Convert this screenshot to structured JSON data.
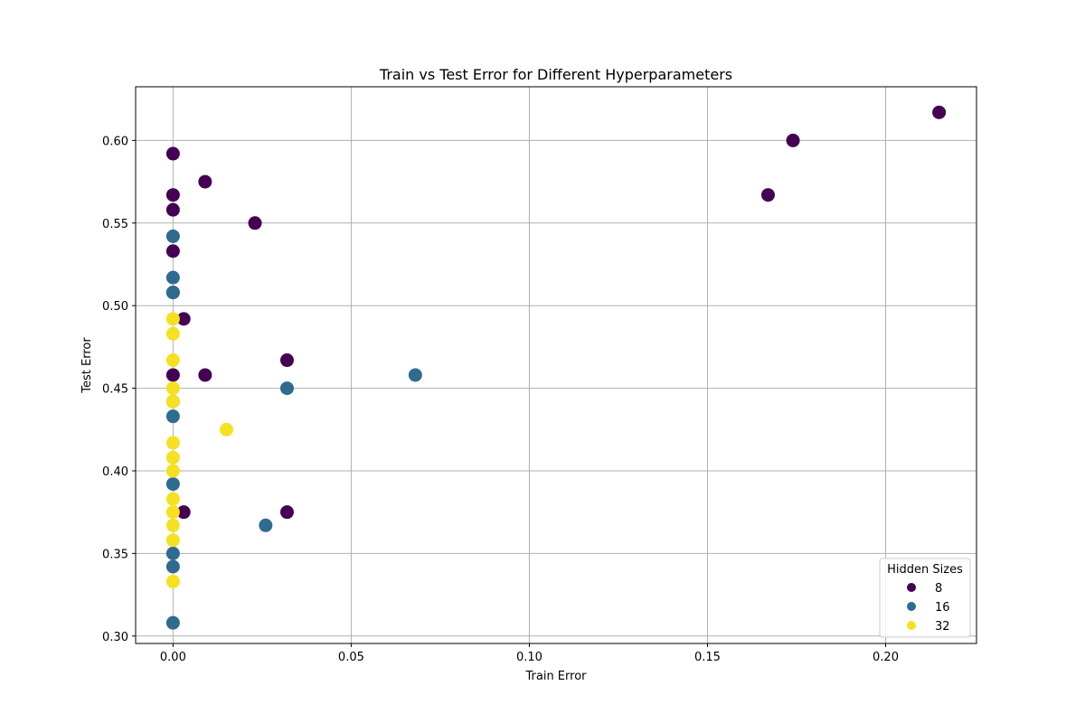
{
  "chart_data": {
    "type": "scatter",
    "title": "Train vs Test Error for Different Hyperparameters",
    "xlabel": "Train Error",
    "ylabel": "Test Error",
    "xlim": [
      -0.0105,
      0.2255
    ],
    "ylim": [
      0.2955,
      0.6325
    ],
    "xticks": [
      0.0,
      0.05,
      0.1,
      0.15,
      0.2
    ],
    "xtick_labels": [
      "0.00",
      "0.05",
      "0.10",
      "0.15",
      "0.20"
    ],
    "yticks": [
      0.3,
      0.35,
      0.4,
      0.45,
      0.5,
      0.55,
      0.6
    ],
    "ytick_labels": [
      "0.30",
      "0.35",
      "0.40",
      "0.45",
      "0.50",
      "0.55",
      "0.60"
    ],
    "grid": true,
    "legend": {
      "title": "Hidden Sizes",
      "placement": "bottom-right"
    },
    "series": [
      {
        "name": "8",
        "color": "#440154",
        "points": [
          [
            0.0,
            0.592
          ],
          [
            0.0,
            0.567
          ],
          [
            0.0,
            0.558
          ],
          [
            0.0,
            0.533
          ],
          [
            0.0,
            0.508
          ],
          [
            0.0,
            0.458
          ],
          [
            0.009,
            0.575
          ],
          [
            0.023,
            0.55
          ],
          [
            0.003,
            0.492
          ],
          [
            0.009,
            0.458
          ],
          [
            0.032,
            0.467
          ],
          [
            0.003,
            0.375
          ],
          [
            0.032,
            0.375
          ],
          [
            0.167,
            0.567
          ],
          [
            0.174,
            0.6
          ],
          [
            0.215,
            0.617
          ]
        ]
      },
      {
        "name": "16",
        "color": "#2f6b8e",
        "points": [
          [
            0.0,
            0.542
          ],
          [
            0.0,
            0.517
          ],
          [
            0.0,
            0.508
          ],
          [
            0.0,
            0.442
          ],
          [
            0.0,
            0.433
          ],
          [
            0.0,
            0.392
          ],
          [
            0.0,
            0.35
          ],
          [
            0.0,
            0.342
          ],
          [
            0.0,
            0.308
          ],
          [
            0.032,
            0.45
          ],
          [
            0.068,
            0.458
          ],
          [
            0.026,
            0.367
          ]
        ]
      },
      {
        "name": "32",
        "color": "#f5e11f",
        "points": [
          [
            0.0,
            0.492
          ],
          [
            0.0,
            0.483
          ],
          [
            0.0,
            0.467
          ],
          [
            0.0,
            0.45
          ],
          [
            0.0,
            0.442
          ],
          [
            0.0,
            0.417
          ],
          [
            0.0,
            0.408
          ],
          [
            0.0,
            0.4
          ],
          [
            0.0,
            0.383
          ],
          [
            0.0,
            0.375
          ],
          [
            0.0,
            0.367
          ],
          [
            0.0,
            0.358
          ],
          [
            0.0,
            0.333
          ],
          [
            0.015,
            0.425
          ]
        ]
      }
    ]
  }
}
